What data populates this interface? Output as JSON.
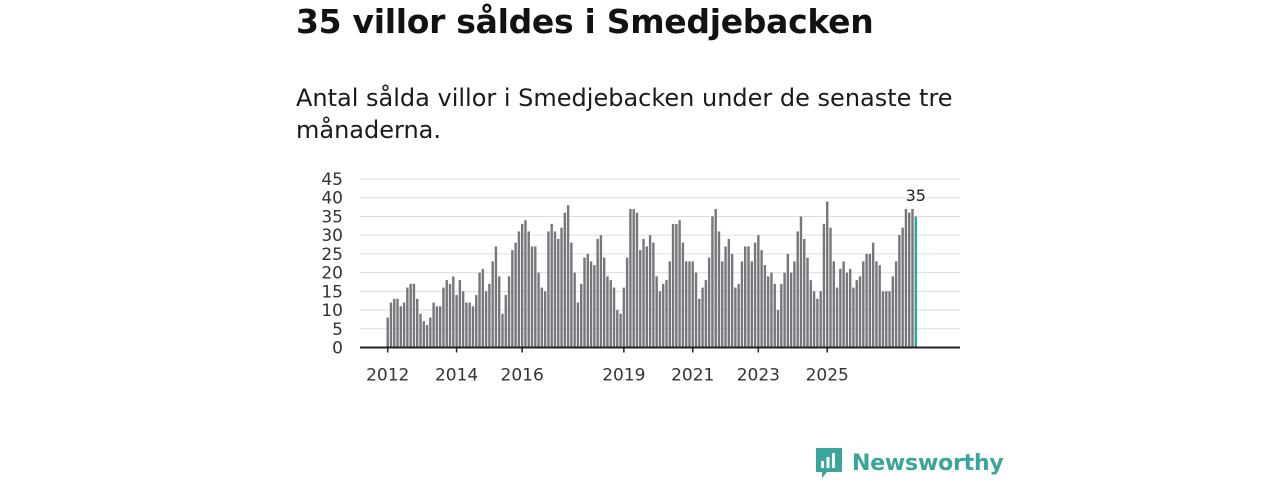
{
  "header": {
    "title": "35 villor såldes i Smedjebacken",
    "subtitle": "Antal sålda villor i Smedjebacken under de senaste tre månaderna."
  },
  "brand": {
    "name": "Newsworthy",
    "color": "#3aa59b"
  },
  "colors": {
    "bar": "#77767c",
    "highlight": "#2aa59b",
    "grid": "#dddddd",
    "axis": "#222222"
  },
  "chart_data": {
    "type": "bar",
    "title": "35 villor såldes i Smedjebacken",
    "xlabel": "",
    "ylabel": "",
    "ylim": [
      0,
      45
    ],
    "yticks": [
      0,
      5,
      10,
      15,
      20,
      25,
      30,
      35,
      40,
      45
    ],
    "xtick_labels": [
      {
        "label": "2012",
        "index": 0
      },
      {
        "label": "2014",
        "index": 21
      },
      {
        "label": "2016",
        "index": 41
      },
      {
        "label": "2019",
        "index": 72
      },
      {
        "label": "2021",
        "index": 93
      },
      {
        "label": "2023",
        "index": 113
      },
      {
        "label": "2025",
        "index": 134
      }
    ],
    "highlight_label": "35",
    "values": [
      8,
      12,
      13,
      13,
      11,
      12,
      16,
      17,
      17,
      13,
      9,
      7,
      6,
      8,
      12,
      11,
      11,
      16,
      18,
      17,
      19,
      14,
      18,
      15,
      12,
      12,
      11,
      14,
      20,
      21,
      15,
      17,
      23,
      27,
      19,
      9,
      14,
      19,
      26,
      28,
      31,
      33,
      34,
      31,
      27,
      27,
      20,
      16,
      15,
      31,
      33,
      31,
      29,
      32,
      36,
      38,
      28,
      20,
      12,
      17,
      24,
      25,
      23,
      22,
      29,
      30,
      24,
      19,
      18,
      16,
      10,
      9,
      16,
      24,
      37,
      37,
      36,
      26,
      29,
      27,
      30,
      28,
      19,
      15,
      17,
      18,
      23,
      33,
      33,
      34,
      28,
      23,
      23,
      23,
      20,
      13,
      16,
      18,
      24,
      35,
      37,
      31,
      23,
      27,
      29,
      25,
      16,
      17,
      23,
      27,
      27,
      23,
      28,
      30,
      26,
      22,
      19,
      20,
      17,
      10,
      17,
      20,
      25,
      20,
      23,
      31,
      35,
      29,
      24,
      18,
      15,
      13,
      15,
      33,
      39,
      32,
      23,
      16,
      21,
      23,
      20,
      21,
      16,
      18,
      19,
      23,
      25,
      25,
      28,
      23,
      22,
      15,
      15,
      15,
      19,
      23,
      30,
      32,
      37,
      36,
      37,
      35
    ]
  }
}
